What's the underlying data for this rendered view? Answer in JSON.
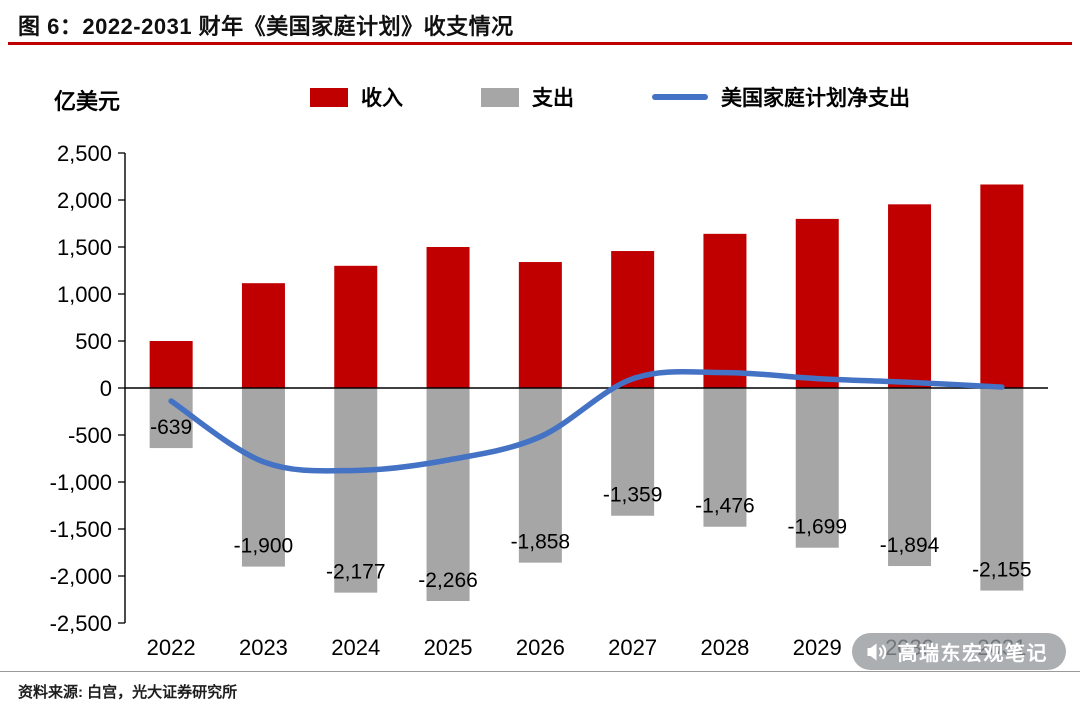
{
  "header": {
    "title": "图 6：2022-2031 财年《美国家庭计划》收支情况"
  },
  "chart_data": {
    "type": "bar",
    "subtype": "bar+line",
    "ylabel": "亿美元",
    "categories": [
      "2022",
      "2023",
      "2024",
      "2025",
      "2026",
      "2027",
      "2028",
      "2029",
      "2030",
      "2031"
    ],
    "series": [
      {
        "name": "收入",
        "type": "bar",
        "color": "#C00000",
        "values": [
          500,
          1115,
          1300,
          1500,
          1340,
          1457,
          1640,
          1799,
          1954,
          2165
        ]
      },
      {
        "name": "支出",
        "type": "bar",
        "color": "#A6A6A6",
        "values": [
          -639,
          -1900,
          -2177,
          -2266,
          -1858,
          -1359,
          -1476,
          -1699,
          -1894,
          -2155
        ],
        "data_labels": [
          "-639",
          "-1,900",
          "-2,177",
          "-2,266",
          "-1,858",
          "-1,359",
          "-1,476",
          "-1,699",
          "-1,894",
          "-2,155"
        ]
      },
      {
        "name": "美国家庭计划净支出",
        "type": "line",
        "color": "#4472C4",
        "values": [
          -139,
          -785,
          -877,
          -766,
          -518,
          98,
          164,
          100,
          60,
          10
        ]
      }
    ],
    "ylim": [
      -2500,
      2500
    ],
    "ytick_step": 500,
    "yticks": [
      "2,500",
      "2,000",
      "1,500",
      "1,000",
      "500",
      "0",
      "-500",
      "-1,000",
      "-1,500",
      "-2,000",
      "-2,500"
    ],
    "grid": false,
    "legend_position": "top"
  },
  "footer": {
    "source": "资料来源: 白宫，光大证券研究所"
  },
  "watermark": {
    "icon": "megaphone-icon",
    "text": "高瑞东宏观笔记"
  },
  "colors": {
    "accent_red": "#C00000",
    "bar_gray": "#A6A6A6",
    "line_blue": "#4472C4"
  }
}
